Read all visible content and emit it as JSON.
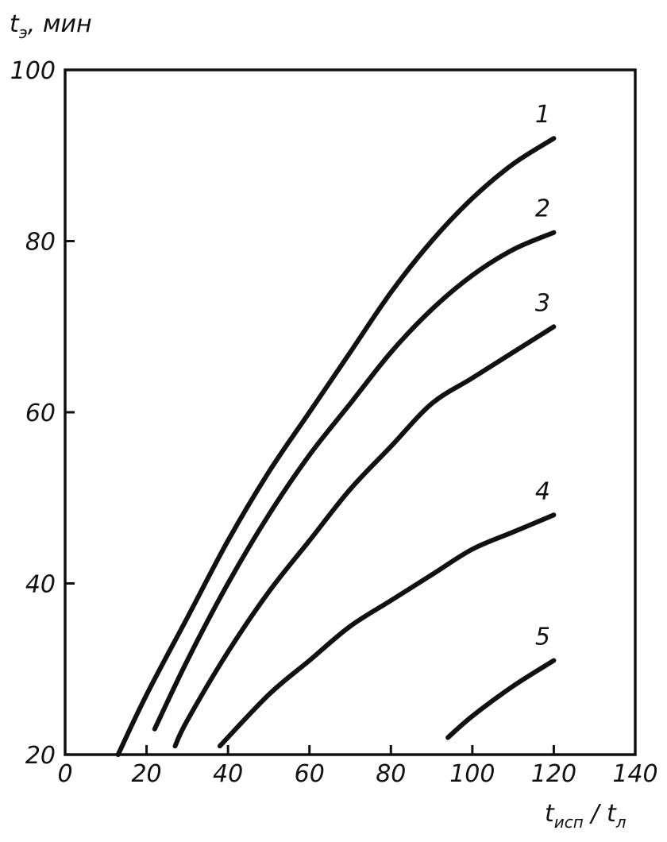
{
  "chart_data": {
    "type": "line",
    "title": "",
    "ylabel": "t",
    "ylabel_sub": "э",
    "ylabel_unit": ", мин",
    "xlabel_num": "t",
    "xlabel_num_sub": "исп",
    "xlabel_sep": " / ",
    "xlabel_den": "t",
    "xlabel_den_sub": "л",
    "xlim": [
      0,
      140
    ],
    "ylim": [
      20,
      100
    ],
    "x_ticks": [
      0,
      20,
      40,
      60,
      80,
      100,
      120,
      140
    ],
    "x_tick_labels": [
      "0",
      "20",
      "40",
      "60",
      "80",
      "100",
      "120",
      "140"
    ],
    "y_ticks": [
      20,
      40,
      60,
      80,
      100
    ],
    "y_tick_labels": [
      "20",
      "40",
      "60",
      "80",
      "100"
    ],
    "grid": false,
    "legend": "none",
    "series": [
      {
        "label": "1",
        "x": [
          13,
          20,
          30,
          40,
          50,
          60,
          70,
          80,
          90,
          100,
          110,
          120
        ],
        "y": [
          20,
          27,
          36,
          45,
          53,
          60,
          67,
          74,
          80,
          85,
          89,
          92
        ]
      },
      {
        "label": "2",
        "x": [
          22,
          30,
          40,
          50,
          60,
          70,
          80,
          90,
          100,
          110,
          120
        ],
        "y": [
          23,
          31,
          40,
          48,
          55,
          61,
          67,
          72,
          76,
          79,
          81
        ]
      },
      {
        "label": "3",
        "x": [
          27,
          30,
          40,
          50,
          60,
          70,
          80,
          90,
          100,
          110,
          120
        ],
        "y": [
          21,
          24,
          32,
          39,
          45,
          51,
          56,
          61,
          64,
          67,
          70
        ]
      },
      {
        "label": "4",
        "x": [
          38,
          50,
          60,
          70,
          80,
          90,
          100,
          110,
          120
        ],
        "y": [
          21,
          27,
          31,
          35,
          38,
          41,
          44,
          46,
          48
        ]
      },
      {
        "label": "5",
        "x": [
          94,
          100,
          110,
          120
        ],
        "y": [
          22,
          24.5,
          28,
          31
        ]
      }
    ]
  }
}
